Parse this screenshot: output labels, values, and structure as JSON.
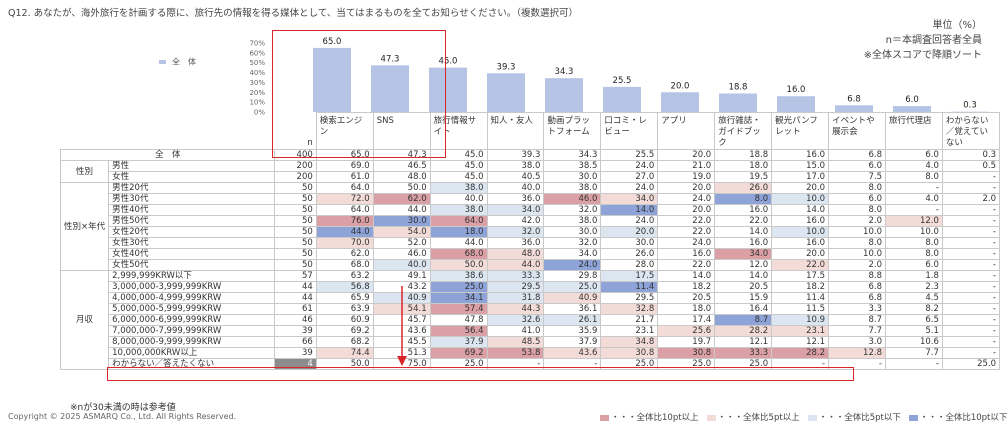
{
  "question": "Q12. あなたが、海外旅行を計画する際に、旅行先の情報を得る媒体として、当てはまるものを全てお知らせください。（複数選択可）",
  "notes": [
    "単位（%）",
    "n＝本調査回答者全員",
    "※全体スコアで降順ソート"
  ],
  "footnote": "※nが30未満の時は参考値",
  "copyright": "Copyright © 2025 ASMARQ Co., Ltd. All Rights Reserved.",
  "n_header": "n",
  "legend": [
    {
      "label": "・・・全体比10pt以上",
      "color": "#dba0a6"
    },
    {
      "label": "・・・全体比5pt以上",
      "color": "#f3dcd8"
    },
    {
      "label": "・・・全体比5pt以下",
      "color": "#dbe6f1"
    },
    {
      "label": "・・・全体比10pt以下",
      "color": "#8ea3d8"
    }
  ],
  "colors": {
    "bar": "#b5c3e4",
    "highlight": "#d9262a"
  },
  "chart_data": {
    "type": "bar",
    "series": [
      {
        "name": "全　体",
        "values": [
          65.0,
          47.3,
          45.0,
          39.3,
          34.3,
          25.5,
          20.0,
          18.8,
          16.0,
          6.8,
          6.0,
          0.3
        ]
      }
    ],
    "categories": [
      "検索エンジン",
      "SNS",
      "旅行情報サイト",
      "知人・友人",
      "動画プラットフォーム",
      "口コミ・レビュー",
      "アプリ",
      "旅行雑誌・ガイドブック",
      "観光パンフレット",
      "イベントや展示会",
      "旅行代理店",
      "わからない／覚えていない"
    ],
    "value_labels": [
      "65.0",
      "47.3",
      "45.0",
      "39.3",
      "34.3",
      "25.5",
      "20.0",
      "18.8",
      "16.0",
      "6.8",
      "6.0",
      "0.3"
    ],
    "ylim": [
      0,
      70
    ],
    "yticks": [
      "0%",
      "10%",
      "20%",
      "30%",
      "40%",
      "50%",
      "60%",
      "70%"
    ],
    "legend_position": "left"
  },
  "rows": [
    {
      "group": "",
      "label": "全　体",
      "n": "400",
      "values": [
        "65.0",
        "47.3",
        "45.0",
        "39.3",
        "34.3",
        "25.5",
        "20.0",
        "18.8",
        "16.0",
        "6.8",
        "6.0",
        "0.3"
      ],
      "shade": [
        "",
        "",
        "",
        "",
        "",
        "",
        "",
        "",
        "",
        "",
        "",
        ""
      ]
    },
    {
      "group": "性別",
      "label": "男性",
      "n": "200",
      "values": [
        "69.0",
        "46.5",
        "45.0",
        "38.0",
        "38.5",
        "24.0",
        "21.0",
        "18.0",
        "15.0",
        "6.0",
        "4.0",
        "0.5"
      ],
      "shade": [
        "",
        "",
        "",
        "",
        "",
        "",
        "",
        "",
        "",
        "",
        "",
        ""
      ]
    },
    {
      "group": "",
      "label": "女性",
      "n": "200",
      "values": [
        "61.0",
        "48.0",
        "45.0",
        "40.5",
        "30.0",
        "27.0",
        "19.0",
        "19.5",
        "17.0",
        "7.5",
        "8.0",
        "-"
      ],
      "shade": [
        "",
        "",
        "",
        "",
        "",
        "",
        "",
        "",
        "",
        "",
        "",
        ""
      ]
    },
    {
      "group": "性別×年代",
      "label": "男性20代",
      "n": "50",
      "values": [
        "64.0",
        "50.0",
        "38.0",
        "40.0",
        "38.0",
        "24.0",
        "20.0",
        "26.0",
        "20.0",
        "8.0",
        "-",
        "-"
      ],
      "shade": [
        "",
        "",
        "b1",
        "",
        "",
        "",
        "",
        "r1",
        "",
        "",
        "",
        ""
      ]
    },
    {
      "group": "",
      "label": "男性30代",
      "n": "50",
      "values": [
        "72.0",
        "62.0",
        "40.0",
        "36.0",
        "46.0",
        "34.0",
        "24.0",
        "8.0",
        "10.0",
        "6.0",
        "4.0",
        "2.0"
      ],
      "shade": [
        "r1",
        "r2",
        "",
        "",
        "r2",
        "r1",
        "",
        "b2",
        "b1",
        "",
        "",
        ""
      ]
    },
    {
      "group": "",
      "label": "男性40代",
      "n": "50",
      "values": [
        "64.0",
        "44.0",
        "38.0",
        "34.0",
        "32.0",
        "14.0",
        "20.0",
        "16.0",
        "14.0",
        "8.0",
        "-",
        "-"
      ],
      "shade": [
        "",
        "",
        "b1",
        "b1",
        "",
        "b2",
        "",
        "",
        "",
        "",
        "",
        ""
      ]
    },
    {
      "group": "",
      "label": "男性50代",
      "n": "50",
      "values": [
        "76.0",
        "30.0",
        "64.0",
        "42.0",
        "38.0",
        "24.0",
        "22.0",
        "22.0",
        "16.0",
        "2.0",
        "12.0",
        "-"
      ],
      "shade": [
        "r2",
        "b2",
        "r2",
        "",
        "",
        "",
        "",
        "",
        "",
        "",
        "r1",
        ""
      ]
    },
    {
      "group": "",
      "label": "女性20代",
      "n": "50",
      "values": [
        "44.0",
        "54.0",
        "18.0",
        "32.0",
        "30.0",
        "20.0",
        "22.0",
        "14.0",
        "10.0",
        "10.0",
        "10.0",
        "-"
      ],
      "shade": [
        "b2",
        "r1",
        "b2",
        "b1",
        "",
        "b1",
        "",
        "",
        "b1",
        "",
        "",
        ""
      ]
    },
    {
      "group": "",
      "label": "女性30代",
      "n": "50",
      "values": [
        "70.0",
        "52.0",
        "44.0",
        "36.0",
        "32.0",
        "30.0",
        "24.0",
        "16.0",
        "16.0",
        "8.0",
        "8.0",
        "-"
      ],
      "shade": [
        "r1",
        "",
        "",
        "",
        "",
        "",
        "",
        "",
        "",
        "",
        "",
        ""
      ]
    },
    {
      "group": "",
      "label": "女性40代",
      "n": "50",
      "values": [
        "62.0",
        "46.0",
        "68.0",
        "48.0",
        "34.0",
        "26.0",
        "16.0",
        "34.0",
        "20.0",
        "10.0",
        "8.0",
        "-"
      ],
      "shade": [
        "",
        "",
        "r2",
        "r1",
        "",
        "",
        "",
        "r2",
        "",
        "",
        "",
        ""
      ]
    },
    {
      "group": "",
      "label": "女性50代",
      "n": "50",
      "values": [
        "68.0",
        "40.0",
        "50.0",
        "44.0",
        "24.0",
        "28.0",
        "22.0",
        "12.0",
        "22.0",
        "2.0",
        "6.0",
        "-"
      ],
      "shade": [
        "",
        "b1",
        "r1",
        "r1",
        "b2",
        "",
        "",
        "",
        "r1",
        "",
        "",
        ""
      ]
    },
    {
      "group": "月収",
      "label": "2,999,999KRW以下",
      "n": "57",
      "values": [
        "63.2",
        "49.1",
        "38.6",
        "33.3",
        "29.8",
        "17.5",
        "14.0",
        "14.0",
        "17.5",
        "8.8",
        "1.8",
        "-"
      ],
      "shade": [
        "",
        "",
        "b1",
        "b1",
        "",
        "b1",
        "",
        "",
        "",
        "",
        "",
        ""
      ]
    },
    {
      "group": "",
      "label": "3,000,000-3,999,999KRW",
      "n": "44",
      "values": [
        "56.8",
        "43.2",
        "25.0",
        "29.5",
        "25.0",
        "11.4",
        "18.2",
        "20.5",
        "18.2",
        "6.8",
        "2.3",
        "-"
      ],
      "shade": [
        "b1",
        "",
        "b2",
        "b1",
        "b1",
        "b2",
        "",
        "",
        "",
        "",
        "",
        ""
      ]
    },
    {
      "group": "",
      "label": "4,000,000-4,999,999KRW",
      "n": "44",
      "values": [
        "65.9",
        "40.9",
        "34.1",
        "31.8",
        "40.9",
        "29.5",
        "20.5",
        "15.9",
        "11.4",
        "6.8",
        "4.5",
        "-"
      ],
      "shade": [
        "",
        "b1",
        "b2",
        "b1",
        "r1",
        "",
        "",
        "",
        "",
        "",
        "",
        ""
      ]
    },
    {
      "group": "",
      "label": "5,000,000-5,999,999KRW",
      "n": "61",
      "values": [
        "63.9",
        "54.1",
        "57.4",
        "44.3",
        "36.1",
        "32.8",
        "18.0",
        "16.4",
        "11.5",
        "3.3",
        "8.2",
        "-"
      ],
      "shade": [
        "",
        "r1",
        "r2",
        "r1",
        "",
        "r1",
        "",
        "",
        "",
        "",
        "",
        ""
      ]
    },
    {
      "group": "",
      "label": "6,000,000-6,999,999KRW",
      "n": "46",
      "values": [
        "60.9",
        "45.7",
        "47.8",
        "32.6",
        "26.1",
        "21.7",
        "17.4",
        "8.7",
        "10.9",
        "8.7",
        "6.5",
        "-"
      ],
      "shade": [
        "",
        "",
        "",
        "b1",
        "b1",
        "",
        "",
        "b2",
        "b1",
        "",
        "",
        ""
      ]
    },
    {
      "group": "",
      "label": "7,000,000-7,999,999KRW",
      "n": "39",
      "values": [
        "69.2",
        "43.6",
        "56.4",
        "41.0",
        "35.9",
        "23.1",
        "25.6",
        "28.2",
        "23.1",
        "7.7",
        "5.1",
        "-"
      ],
      "shade": [
        "",
        "",
        "r2",
        "",
        "",
        "",
        "r1",
        "r1",
        "r1",
        "",
        "",
        ""
      ]
    },
    {
      "group": "",
      "label": "8,000,000-9,999,999KRW",
      "n": "66",
      "values": [
        "68.2",
        "45.5",
        "37.9",
        "48.5",
        "37.9",
        "34.8",
        "19.7",
        "12.1",
        "12.1",
        "3.0",
        "10.6",
        "-"
      ],
      "shade": [
        "",
        "",
        "b1",
        "r1",
        "",
        "r1",
        "",
        "",
        "",
        "",
        "",
        ""
      ]
    },
    {
      "group": "",
      "label": "10,000,000KRW以上",
      "n": "39",
      "values": [
        "74.4",
        "51.3",
        "69.2",
        "53.8",
        "43.6",
        "30.8",
        "30.8",
        "33.3",
        "28.2",
        "12.8",
        "7.7",
        "-"
      ],
      "shade": [
        "r1",
        "",
        "r2",
        "r2",
        "r1",
        "r1",
        "r2",
        "r2",
        "r2",
        "r1",
        "",
        ""
      ]
    },
    {
      "group": "",
      "label": "わからない／答えたくない",
      "n": "4",
      "values": [
        "50.0",
        "75.0",
        "25.0",
        "-",
        "-",
        "25.0",
        "25.0",
        "25.0",
        "-",
        "-",
        "-",
        "25.0"
      ],
      "shade": [
        "",
        "",
        "",
        "",
        "",
        "",
        "",
        "",
        "",
        "",
        "",
        ""
      ],
      "gray_n": true
    }
  ]
}
